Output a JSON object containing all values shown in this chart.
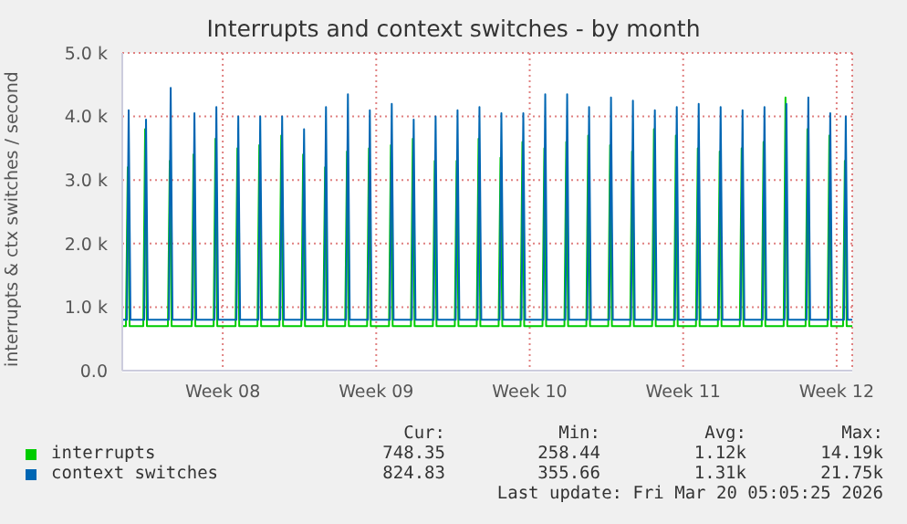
{
  "chart_data": {
    "type": "line",
    "title": "Interrupts and context switches - by month",
    "ylabel": "interrupts & ctx switches / second",
    "xlim": [
      "2026-02-14T22:00",
      "2026-03-20T05:05"
    ],
    "xticks": [
      {
        "value": "2026-02-19T12:00",
        "label": "Week 08"
      },
      {
        "value": "2026-02-26T12:00",
        "label": "Week 09"
      },
      {
        "value": "2026-03-05T12:00",
        "label": "Week 10"
      },
      {
        "value": "2026-03-12T12:00",
        "label": "Week 11"
      },
      {
        "value": "2026-03-19T12:00",
        "label": "Week 12"
      }
    ],
    "ylim": [
      0,
      5000
    ],
    "yticks": [
      {
        "value": 0,
        "label": "0.0"
      },
      {
        "value": 1000,
        "label": "1.0 k"
      },
      {
        "value": 2000,
        "label": "2.0 k"
      },
      {
        "value": 3000,
        "label": "3.0 k"
      },
      {
        "value": 4000,
        "label": "4.0 k"
      },
      {
        "value": 5000,
        "label": "5.0 k"
      }
    ],
    "grid": true,
    "legend": "bottom left",
    "marker": "none",
    "line_style": "solid",
    "annotations": [
      "Cur:",
      "Min:",
      "Avg:",
      "Max:",
      "748.35",
      "258.44",
      "1.12k",
      "14.19k",
      "824.83",
      "355.66",
      "1.31k",
      "21.75k",
      "Last update: Fri Mar 20 05:05:25 2026"
    ],
    "series": [
      {
        "name": "interrupts",
        "color": "#00cc00",
        "x": [
          "2026-02-14T22:00",
          "2026-02-15T02:00",
          "2026-02-15T04:00",
          "2026-02-15T06:00",
          "2026-02-15T21:00",
          "2026-02-15T23:00",
          "2026-02-16T01:00",
          "2026-02-17T00:00",
          "2026-02-17T02:00",
          "2026-02-17T04:00",
          "2026-02-18T02:00",
          "2026-02-18T04:00",
          "2026-02-18T06:00",
          "2026-02-19T02:00",
          "2026-02-19T04:00",
          "2026-02-19T06:00",
          "2026-02-20T02:00",
          "2026-02-20T04:00",
          "2026-02-20T06:00",
          "2026-02-21T02:00",
          "2026-02-21T04:00",
          "2026-02-21T06:00",
          "2026-02-22T02:00",
          "2026-02-22T04:00",
          "2026-02-22T06:00",
          "2026-02-23T02:00",
          "2026-02-23T04:00",
          "2026-02-23T06:00",
          "2026-02-24T02:00",
          "2026-02-24T04:00",
          "2026-02-24T06:00",
          "2026-02-25T02:00",
          "2026-02-25T04:00",
          "2026-02-25T06:00",
          "2026-02-26T02:00",
          "2026-02-26T04:00",
          "2026-02-26T06:00",
          "2026-02-27T02:00",
          "2026-02-27T04:00",
          "2026-02-27T06:00",
          "2026-02-28T02:00",
          "2026-02-28T04:00",
          "2026-02-28T06:00",
          "2026-03-01T02:00",
          "2026-03-01T04:00",
          "2026-03-01T06:00",
          "2026-03-02T02:00",
          "2026-03-02T04:00",
          "2026-03-02T06:00",
          "2026-03-03T02:00",
          "2026-03-03T04:00",
          "2026-03-03T06:00",
          "2026-03-04T02:00",
          "2026-03-04T04:00",
          "2026-03-04T06:00",
          "2026-03-05T02:00",
          "2026-03-05T04:00",
          "2026-03-05T06:00",
          "2026-03-06T02:00",
          "2026-03-06T04:00",
          "2026-03-06T06:00",
          "2026-03-07T02:00",
          "2026-03-07T04:00",
          "2026-03-07T06:00",
          "2026-03-08T02:00",
          "2026-03-08T04:00",
          "2026-03-08T06:00",
          "2026-03-09T02:00",
          "2026-03-09T04:00",
          "2026-03-09T06:00",
          "2026-03-10T02:00",
          "2026-03-10T04:00",
          "2026-03-10T06:00",
          "2026-03-11T02:00",
          "2026-03-11T04:00",
          "2026-03-11T06:00",
          "2026-03-12T02:00",
          "2026-03-12T04:00",
          "2026-03-12T06:00",
          "2026-03-13T02:00",
          "2026-03-13T04:00",
          "2026-03-13T06:00",
          "2026-03-14T02:00",
          "2026-03-14T04:00",
          "2026-03-14T06:00",
          "2026-03-15T02:00",
          "2026-03-15T04:00",
          "2026-03-15T06:00",
          "2026-03-16T02:00",
          "2026-03-16T04:00",
          "2026-03-16T06:00",
          "2026-03-17T02:00",
          "2026-03-17T04:00",
          "2026-03-17T06:00",
          "2026-03-18T02:00",
          "2026-03-18T04:00",
          "2026-03-18T06:00",
          "2026-03-19T02:00",
          "2026-03-19T04:00",
          "2026-03-19T06:00",
          "2026-03-19T19:00",
          "2026-03-19T21:00",
          "2026-03-19T23:00",
          "2026-03-20T05:05"
        ],
        "values": [
          700,
          700,
          3200,
          700,
          700,
          3800,
          700,
          700,
          3300,
          700,
          700,
          3400,
          700,
          700,
          3650,
          700,
          700,
          3500,
          700,
          700,
          3550,
          700,
          700,
          3700,
          700,
          700,
          3400,
          700,
          700,
          3200,
          700,
          700,
          3450,
          700,
          700,
          3500,
          700,
          700,
          3550,
          700,
          700,
          3650,
          700,
          700,
          3300,
          700,
          700,
          3300,
          700,
          700,
          3650,
          700,
          700,
          3350,
          700,
          700,
          3600,
          700,
          700,
          3500,
          700,
          700,
          3600,
          700,
          700,
          3700,
          700,
          700,
          3550,
          700,
          700,
          3450,
          700,
          700,
          3800,
          700,
          700,
          3700,
          700,
          700,
          3500,
          700,
          700,
          3450,
          700,
          700,
          3500,
          700,
          700,
          3600,
          700,
          700,
          4300,
          700,
          700,
          3800,
          700,
          700,
          3700,
          700,
          700,
          3300,
          700,
          700
        ]
      },
      {
        "name": "context switches",
        "color": "#0066b3",
        "x": [
          "2026-02-14T22:00",
          "2026-02-15T03:00",
          "2026-02-15T05:00",
          "2026-02-15T07:00",
          "2026-02-15T22:00",
          "2026-02-16T00:00",
          "2026-02-16T02:00",
          "2026-02-17T01:00",
          "2026-02-17T03:00",
          "2026-02-17T05:00",
          "2026-02-18T03:00",
          "2026-02-18T05:00",
          "2026-02-18T07:00",
          "2026-02-19T03:00",
          "2026-02-19T05:00",
          "2026-02-19T07:00",
          "2026-02-20T03:00",
          "2026-02-20T05:00",
          "2026-02-20T07:00",
          "2026-02-21T03:00",
          "2026-02-21T05:00",
          "2026-02-21T07:00",
          "2026-02-22T03:00",
          "2026-02-22T05:00",
          "2026-02-22T07:00",
          "2026-02-23T03:00",
          "2026-02-23T05:00",
          "2026-02-23T07:00",
          "2026-02-24T03:00",
          "2026-02-24T05:00",
          "2026-02-24T07:00",
          "2026-02-25T03:00",
          "2026-02-25T05:00",
          "2026-02-25T07:00",
          "2026-02-26T03:00",
          "2026-02-26T05:00",
          "2026-02-26T07:00",
          "2026-02-27T03:00",
          "2026-02-27T05:00",
          "2026-02-27T07:00",
          "2026-02-28T03:00",
          "2026-02-28T05:00",
          "2026-02-28T07:00",
          "2026-03-01T03:00",
          "2026-03-01T05:00",
          "2026-03-01T07:00",
          "2026-03-02T03:00",
          "2026-03-02T05:00",
          "2026-03-02T07:00",
          "2026-03-03T03:00",
          "2026-03-03T05:00",
          "2026-03-03T07:00",
          "2026-03-04T03:00",
          "2026-03-04T05:00",
          "2026-03-04T07:00",
          "2026-03-05T03:00",
          "2026-03-05T05:00",
          "2026-03-05T07:00",
          "2026-03-06T03:00",
          "2026-03-06T05:00",
          "2026-03-06T07:00",
          "2026-03-07T03:00",
          "2026-03-07T05:00",
          "2026-03-07T07:00",
          "2026-03-08T03:00",
          "2026-03-08T05:00",
          "2026-03-08T07:00",
          "2026-03-09T03:00",
          "2026-03-09T05:00",
          "2026-03-09T07:00",
          "2026-03-10T03:00",
          "2026-03-10T05:00",
          "2026-03-10T07:00",
          "2026-03-11T03:00",
          "2026-03-11T05:00",
          "2026-03-11T07:00",
          "2026-03-12T03:00",
          "2026-03-12T05:00",
          "2026-03-12T07:00",
          "2026-03-13T03:00",
          "2026-03-13T05:00",
          "2026-03-13T07:00",
          "2026-03-14T03:00",
          "2026-03-14T05:00",
          "2026-03-14T07:00",
          "2026-03-15T03:00",
          "2026-03-15T05:00",
          "2026-03-15T07:00",
          "2026-03-16T03:00",
          "2026-03-16T05:00",
          "2026-03-16T07:00",
          "2026-03-17T03:00",
          "2026-03-17T05:00",
          "2026-03-17T07:00",
          "2026-03-18T03:00",
          "2026-03-18T05:00",
          "2026-03-18T07:00",
          "2026-03-19T03:00",
          "2026-03-19T05:00",
          "2026-03-19T07:00",
          "2026-03-19T20:00",
          "2026-03-19T22:00",
          "2026-03-20T00:00",
          "2026-03-20T05:05"
        ],
        "values": [
          800,
          800,
          4100,
          800,
          800,
          3950,
          800,
          800,
          4450,
          800,
          800,
          4050,
          800,
          800,
          4150,
          800,
          800,
          4000,
          800,
          800,
          4000,
          800,
          800,
          4000,
          800,
          800,
          3800,
          800,
          800,
          4150,
          800,
          800,
          4350,
          800,
          800,
          4100,
          800,
          800,
          4200,
          800,
          800,
          3950,
          800,
          800,
          4000,
          800,
          800,
          4100,
          800,
          800,
          4150,
          800,
          800,
          4050,
          800,
          800,
          4050,
          800,
          800,
          4350,
          800,
          800,
          4350,
          800,
          800,
          4150,
          800,
          800,
          4300,
          800,
          800,
          4250,
          800,
          800,
          4100,
          800,
          800,
          4150,
          800,
          800,
          4200,
          800,
          800,
          4150,
          800,
          800,
          4100,
          800,
          800,
          4150,
          800,
          800,
          4200,
          800,
          800,
          4300,
          800,
          800,
          4050,
          800,
          800,
          4000,
          800,
          800
        ]
      }
    ]
  }
}
